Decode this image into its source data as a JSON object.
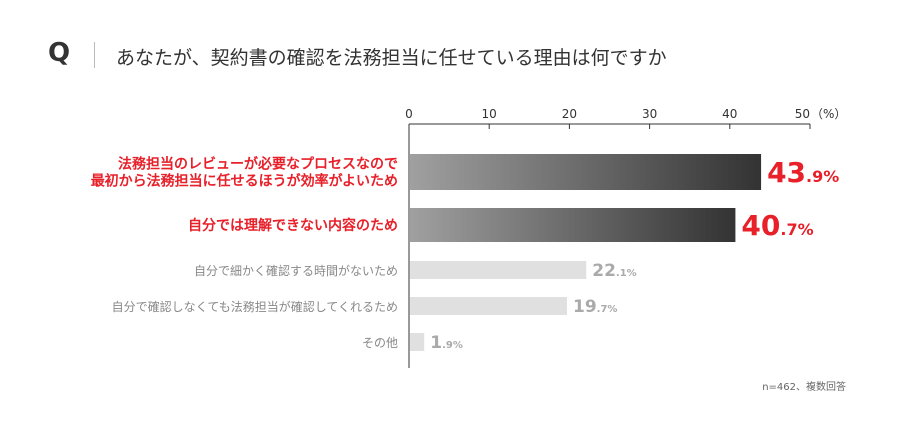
{
  "header": {
    "q_letter": "Q",
    "question": "あなたが、契約書の確認を法務担当に任せている理由は何ですか"
  },
  "note": "n=462、複数回答",
  "colors": {
    "highlight": "#e8202a",
    "dark_bar_start": "#a0a0a0",
    "dark_bar_end": "#333333",
    "light_bar": "#e0e0e0",
    "muted_text": "#aaaaaa"
  },
  "chart_data": {
    "type": "bar",
    "orientation": "horizontal",
    "axis_unit": "（%）",
    "xlim": [
      0,
      50
    ],
    "ticks": [
      0,
      10,
      20,
      30,
      40,
      50
    ],
    "categories": [
      [
        "法務担当のレビューが必要なプロセスなので",
        "最初から法務担当に任せるほうが効率がよいため"
      ],
      [
        "自分では理解できない内容のため"
      ],
      [
        "自分で細かく確認する時間がないため"
      ],
      [
        "自分で確認しなくても法務担当が確認してくれるため"
      ],
      [
        "その他"
      ]
    ],
    "values": [
      43.9,
      40.7,
      22.1,
      19.7,
      1.9
    ],
    "highlighted": [
      true,
      true,
      false,
      false,
      false
    ],
    "grid": false
  }
}
